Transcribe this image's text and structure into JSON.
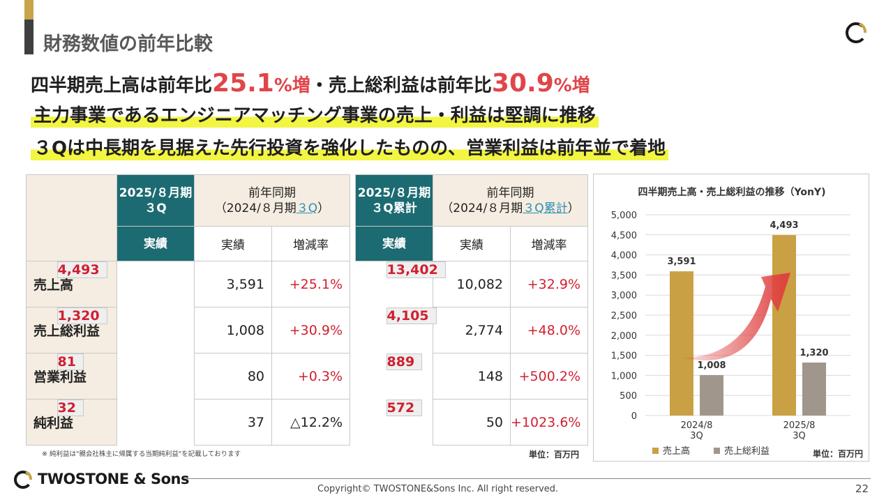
{
  "slide_title": "財務数値の前年比較",
  "headline1": {
    "a": "四半期売上高は前年比",
    "v1": "25.1",
    "p1": "%増",
    "mid": "・売上総利益は前年比",
    "v2": "30.9",
    "p2": "%増"
  },
  "headline2": "主力事業であるエンジニアマッチング事業の売上・利益は堅調に推移",
  "headline3": "３Qは中長期を見据えた先行投資を強化したものの、営業利益は前年並で着地",
  "table_quarter": {
    "h_current_1": "2025/８月期",
    "h_current_2": "３Q",
    "h_prior_1": "前年同期",
    "h_prior_2a": "（2024/８月期",
    "h_prior_link": "３Q",
    "h_prior_2b": "）",
    "sub": [
      "実績",
      "実績",
      "増減率"
    ],
    "rows": [
      {
        "label": "売上高",
        "cur": "4,493",
        "prev": "3,591",
        "chg": "+25.1%"
      },
      {
        "label": "売上総利益",
        "cur": "1,320",
        "prev": "1,008",
        "chg": "+30.9%"
      },
      {
        "label": "営業利益",
        "cur": "81",
        "prev": "80",
        "chg": "+0.3%"
      },
      {
        "label": "純利益",
        "cur": "32",
        "prev": "37",
        "chg": "△12.2%"
      }
    ]
  },
  "table_cumulative": {
    "h_current_1": "2025/８月期",
    "h_current_2": "３Q累計",
    "h_prior_1": "前年同期",
    "h_prior_2a": "（2024/８月期",
    "h_prior_link": "３Q累計",
    "h_prior_2b": "）",
    "sub": [
      "実績",
      "実績",
      "増減率"
    ],
    "rows": [
      {
        "cur": "13,402",
        "prev": "10,082",
        "chg": "+32.9%"
      },
      {
        "cur": "4,105",
        "prev": "2,774",
        "chg": "+48.0%"
      },
      {
        "cur": "889",
        "prev": "148",
        "chg": "+500.2%"
      },
      {
        "cur": "572",
        "prev": "50",
        "chg": "+1023.6%"
      }
    ]
  },
  "note": "※ 純利益は\"親会社株主に帰属する当期純利益\"を記載しております",
  "unit_table": "単位：百万円",
  "chart_data": {
    "type": "bar",
    "title": "四半期売上高・売上総利益の推移（YonY)",
    "categories": [
      "2024/8\n3Q",
      "2025/8\n3Q"
    ],
    "category_lines": [
      [
        "2024/8",
        "3Q"
      ],
      [
        "2025/8",
        "3Q"
      ]
    ],
    "series": [
      {
        "name": "売上高",
        "values": [
          3591,
          4493
        ],
        "labels": [
          "3,591",
          "4,493"
        ],
        "color": "#c9a044"
      },
      {
        "name": "売上総利益",
        "values": [
          1008,
          1320
        ],
        "labels": [
          "1,008",
          "1,320"
        ],
        "color": "#a0968b"
      }
    ],
    "ylim": [
      0,
      5000
    ],
    "yticks": [
      0,
      500,
      1000,
      1500,
      2000,
      2500,
      3000,
      3500,
      4000,
      4500,
      5000
    ],
    "ytick_labels": [
      "0",
      "500",
      "1,000",
      "1,500",
      "2,000",
      "2,500",
      "3,000",
      "3,500",
      "4,000",
      "4,500",
      "5,000"
    ],
    "grid": true,
    "legend": "bottom",
    "unit": "単位：百万円",
    "arrow_color": "#e04040"
  },
  "brand": "TWOSTONE & Sons",
  "copyright": "Copyright© TWOSTONE&Sons Inc. All right reserved.",
  "page_number": "22",
  "colors": {
    "accent_gold": "#c9a44a",
    "teal": "#1c6b72",
    "red": "#d02030",
    "beige": "#f5ede1",
    "highlight": "#f2f542"
  }
}
